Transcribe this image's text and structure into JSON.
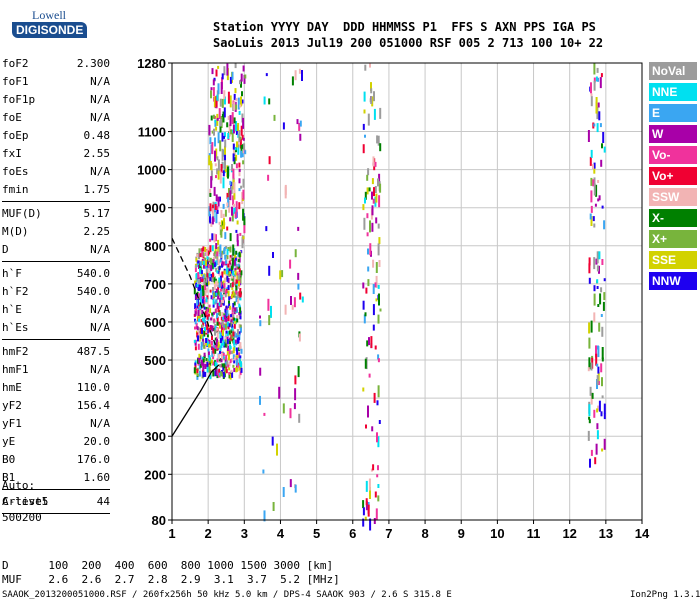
{
  "logo": {
    "line1": "Lowell",
    "line2": "DIGISONDE"
  },
  "header": {
    "labels": "Station YYYY DAY  DDD HHMMSS P1  FFS S AXN PPS IGA PS",
    "values": "SaoLuis 2013 Jul19 200 051000 RSF 005 2 713 100 10+ 22"
  },
  "params": [
    {
      "k": "foF2",
      "v": "2.300"
    },
    {
      "k": "foF1",
      "v": "N/A"
    },
    {
      "k": "foF1p",
      "v": "N/A"
    },
    {
      "k": "foE",
      "v": "N/A"
    },
    {
      "k": "foEp",
      "v": "0.48"
    },
    {
      "k": "fxI",
      "v": "2.55"
    },
    {
      "k": "foEs",
      "v": "N/A"
    },
    {
      "k": "fmin",
      "v": "1.75"
    },
    {
      "k": "MUF(D)",
      "v": "5.17"
    },
    {
      "k": "M(D)",
      "v": "2.25"
    },
    {
      "k": "D",
      "v": "N/A"
    },
    {
      "k": "h`F",
      "v": "540.0"
    },
    {
      "k": "h`F2",
      "v": "540.0"
    },
    {
      "k": "h`E",
      "v": "N/A"
    },
    {
      "k": "h`Es",
      "v": "N/A"
    },
    {
      "k": "hmF2",
      "v": "487.5"
    },
    {
      "k": "hmF1",
      "v": "N/A"
    },
    {
      "k": "hmE",
      "v": "110.0"
    },
    {
      "k": "yF2",
      "v": "156.4"
    },
    {
      "k": "yF1",
      "v": "N/A"
    },
    {
      "k": "yE",
      "v": "20.0"
    },
    {
      "k": "B0",
      "v": "176.0"
    },
    {
      "k": "B1",
      "v": "1.60"
    },
    {
      "k": "C-level",
      "v": "44"
    }
  ],
  "auto": [
    "Auto:",
    "Artist5",
    "500200"
  ],
  "legend": [
    {
      "label": "NoVal",
      "color": "#9c9c9c"
    },
    {
      "label": "NNE",
      "color": "#00e0f0"
    },
    {
      "label": "E",
      "color": "#3aa6f2"
    },
    {
      "label": "W",
      "color": "#a800a8"
    },
    {
      "label": "Vo-",
      "color": "#f0329c"
    },
    {
      "label": "Vo+",
      "color": "#f00032"
    },
    {
      "label": "SSW",
      "color": "#f2b4b4"
    },
    {
      "label": "X-",
      "color": "#008000"
    },
    {
      "label": "X+",
      "color": "#78b43c"
    },
    {
      "label": "SSE",
      "color": "#d2d200"
    },
    {
      "label": "NNW",
      "color": "#1e00f0"
    }
  ],
  "chart_data": {
    "type": "scatter",
    "xlabel": "",
    "ylabel": "",
    "xlim": [
      1,
      14
    ],
    "ylim": [
      80,
      1280
    ],
    "xticks": [
      1,
      2,
      3,
      4,
      5,
      6,
      7,
      8,
      9,
      10,
      11,
      12,
      13,
      14
    ],
    "yticks": [
      80,
      200,
      300,
      400,
      500,
      600,
      700,
      800,
      900,
      1000,
      1100,
      1280
    ],
    "grid": true,
    "trace": [
      {
        "x": 1.0,
        "y": 300
      },
      {
        "x": 1.4,
        "y": 360
      },
      {
        "x": 1.8,
        "y": 420
      },
      {
        "x": 2.1,
        "y": 470
      },
      {
        "x": 2.3,
        "y": 487.5
      }
    ],
    "dashed_trace": [
      {
        "x": 1.0,
        "y": 820
      },
      {
        "x": 1.5,
        "y": 720
      },
      {
        "x": 1.9,
        "y": 620
      },
      {
        "x": 2.2,
        "y": 540
      }
    ],
    "echo_bands": [
      {
        "x0": 1.6,
        "x1": 2.9,
        "y0": 460,
        "y1": 800,
        "density": "high"
      },
      {
        "x0": 2.0,
        "x1": 3.0,
        "y0": 800,
        "y1": 1280,
        "density": "medium"
      },
      {
        "x0": 6.25,
        "x1": 6.75,
        "y0": 80,
        "y1": 1280,
        "density": "low"
      },
      {
        "x0": 12.5,
        "x1": 12.95,
        "y0": 240,
        "y1": 1280,
        "density": "low"
      },
      {
        "x0": 3.4,
        "x1": 4.6,
        "y0": 100,
        "y1": 1280,
        "density": "sparse"
      }
    ]
  },
  "table": {
    "row1": "D      100  200  400  600  800 1000 1500 3000 [km]",
    "row2": "MUF    2.6  2.6  2.7  2.8  2.9  3.1  3.7  5.2 [MHz]"
  },
  "footer": {
    "left": "SAAOK_2013200051000.RSF / 260fx256h 50 kHz 5.0 km / DPS-4 SAAOK 903 / 2.6 S 315.8 E",
    "right": "Ion2Png 1.3.17"
  }
}
